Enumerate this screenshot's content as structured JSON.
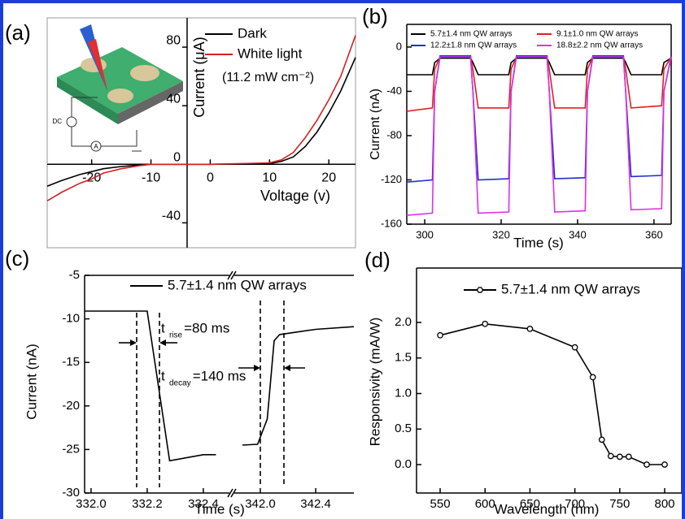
{
  "chart_data": [
    {
      "type": "line",
      "title": "(a)",
      "x_label": "Voltage (v)",
      "y_label": "Current (μA)",
      "axes": "cross",
      "legend_note": "(11.2 mW cm⁻²)",
      "inset_labels": [
        "DC",
        "A"
      ],
      "x": [
        -27.5,
        -25,
        -22,
        -20,
        -18,
        -15,
        -12,
        -10,
        0,
        10,
        12,
        14,
        16,
        18,
        20,
        22,
        24.5
      ],
      "series": [
        {
          "name": "Dark",
          "color": "#000000",
          "values": [
            -15,
            -11,
            -7,
            -5,
            -3,
            -1.5,
            -0.5,
            0,
            0,
            0.5,
            2,
            5,
            12,
            22,
            35,
            50,
            73
          ]
        },
        {
          "name": "White light",
          "color": "#d42020",
          "values": [
            -25,
            -19,
            -13,
            -10,
            -6,
            -3,
            -1,
            0,
            0,
            1,
            3,
            8,
            18,
            30,
            44,
            60,
            88
          ]
        }
      ],
      "xlim": [
        -27.5,
        24.5
      ],
      "ylim": [
        -57,
        100
      ],
      "xticks": [
        -20,
        -10,
        0,
        10,
        20
      ],
      "yticks": [
        -40,
        0,
        40,
        80
      ]
    },
    {
      "type": "line",
      "title": "(b)",
      "x_label": "Time (s)",
      "y_label": "Current (nA)",
      "axes": "box",
      "x": [
        295.3,
        302,
        302.6,
        304,
        312,
        312.6,
        314,
        322,
        322.6,
        324,
        332,
        332.6,
        334,
        342,
        342.6,
        344,
        352,
        352.6,
        354,
        362,
        362.6,
        364.5
      ],
      "series": [
        {
          "name": "5.7±1.4 nm QW arrays",
          "color": "#000000",
          "values": [
            -25,
            -25,
            -14,
            -10,
            -10,
            -14,
            -25,
            -25,
            -14,
            -10,
            -10,
            -14,
            -25,
            -25,
            -14,
            -10,
            -10,
            -14,
            -25,
            -25,
            -14,
            -10
          ]
        },
        {
          "name": "9.1±1.0 nm QW arrays",
          "color": "#e02020",
          "values": [
            -58,
            -55,
            -20,
            -9,
            -9,
            -20,
            -55,
            -55,
            -20,
            -9,
            -9,
            -20,
            -55,
            -55,
            -20,
            -9,
            -9,
            -20,
            -55,
            -53,
            -20,
            -9
          ]
        },
        {
          "name": "12.2±1.8 nm QW arrays",
          "color": "#1f2fd0",
          "values": [
            -122,
            -120,
            -40,
            -8,
            -8,
            -40,
            -120,
            -119,
            -40,
            -8,
            -8,
            -40,
            -119,
            -118,
            -40,
            -8,
            -8,
            -40,
            -117,
            -116,
            -40,
            -8
          ]
        },
        {
          "name": "18.8±2.2 nm QW arrays",
          "color": "#e030e0",
          "values": [
            -152,
            -150,
            -40,
            -9,
            -9,
            -40,
            -150,
            -149,
            -40,
            -9,
            -9,
            -40,
            -149,
            -148,
            -40,
            -9,
            -9,
            -40,
            -147,
            -146,
            -40,
            -9
          ]
        }
      ],
      "xlim": [
        295.3,
        364.5
      ],
      "ylim": [
        -160,
        20.5
      ],
      "xticks": [
        300,
        320,
        340,
        360
      ],
      "yticks": [
        -160,
        -120,
        -80,
        -40,
        0
      ]
    },
    {
      "type": "line",
      "title": "(c)",
      "x_label": "Time (s)",
      "y_label": "Current (nA)",
      "axes": "box",
      "series": [
        {
          "name": "5.7±1.4 nm QW arrays",
          "color": "#000000"
        }
      ],
      "segments": [
        {
          "xlim": [
            331.977,
            332.493
          ],
          "xticks": [
            {
              "value": 332,
              "label": "332.0"
            },
            332.2,
            332.4
          ],
          "x": [
            331.977,
            332.2,
            332.28,
            332.4,
            332.445
          ],
          "values": [
            -9.1,
            -9.1,
            -26.3,
            -25.6,
            -25.6
          ]
        },
        {
          "xlim": [
            341.812,
            342.676
          ],
          "xticks": [
            {
              "value": 342,
              "label": "342.0"
            },
            342.4
          ],
          "x": [
            341.87,
            341.98,
            342.05,
            342.1,
            342.14,
            342.4,
            342.676
          ],
          "values": [
            -24.5,
            -24.4,
            -21.5,
            -12.5,
            -11.8,
            -11.2,
            -10.9
          ]
        }
      ],
      "annotations": [
        {
          "symbol": "t",
          "subscript": "rise",
          "text": "=80 ms"
        },
        {
          "symbol": "t",
          "subscript": "decay",
          "text": "=140 ms"
        }
      ],
      "ylim": [
        -30,
        -5
      ],
      "yticks": [
        -30,
        -25,
        -20,
        -15,
        -10,
        -5
      ]
    },
    {
      "type": "line",
      "title": "(d)",
      "x_label": "Wavelength (nm)",
      "y_label": "Responsivity (mA/W)",
      "axes": "box",
      "markers": "open-circle",
      "x": [
        550,
        600,
        650,
        700,
        720,
        730,
        740,
        750,
        760,
        780,
        800
      ],
      "series": [
        {
          "name": "5.7±1.4 nm QW arrays",
          "color": "#000000",
          "values": [
            1.82,
            1.98,
            1.91,
            1.65,
            1.23,
            0.35,
            0.12,
            0.11,
            0.11,
            0,
            0
          ]
        }
      ],
      "xlim": [
        523.7,
        819
      ],
      "ylim": [
        -0.4,
        2.766
      ],
      "xticks": [
        550,
        600,
        650,
        700,
        750,
        800
      ],
      "yticks": [
        {
          "value": 0,
          "label": "0.0"
        },
        0.5,
        {
          "value": 1,
          "label": "1.0"
        },
        1.5,
        {
          "value": 2,
          "label": "2.0"
        }
      ]
    }
  ]
}
